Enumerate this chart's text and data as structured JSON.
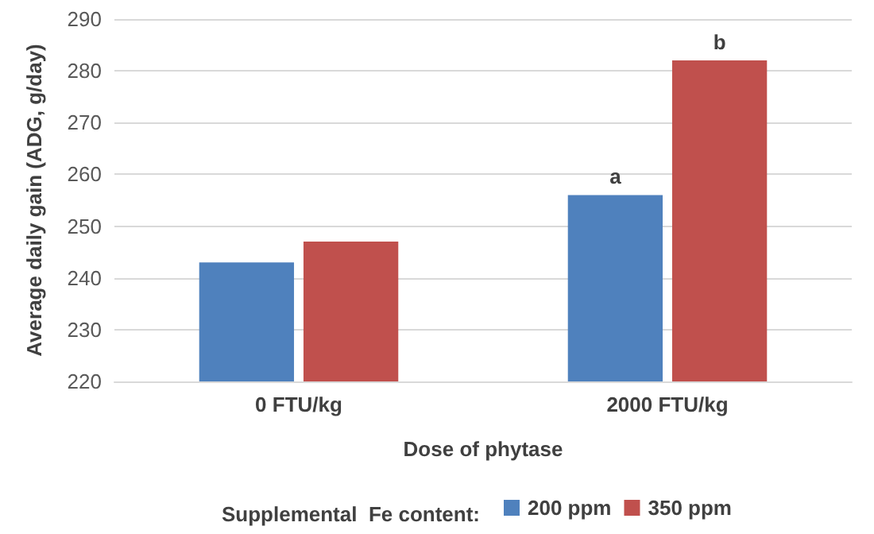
{
  "chart_data": {
    "type": "bar",
    "xlabel": "Dose of phytase",
    "ylabel": "Average daily gain (ADG, g/day)",
    "legend_title": "Supplemental  Fe content:",
    "categories": [
      "0 FTU/kg",
      "2000 FTU/kg"
    ],
    "series": [
      {
        "name": "200 ppm",
        "color": "#4f81bd",
        "values": [
          243,
          256
        ]
      },
      {
        "name": "350 ppm",
        "color": "#c0504d",
        "values": [
          247,
          282
        ]
      }
    ],
    "ylim": [
      220,
      290
    ],
    "yticks": [
      220,
      230,
      240,
      250,
      260,
      270,
      280,
      290
    ],
    "grid": "y",
    "legend": "bottom",
    "annotations": [
      {
        "text": "a",
        "x": "2000 FTU/kg",
        "y": 256
      },
      {
        "text": "b",
        "x": "2000 FTU/kg",
        "y": 282
      }
    ]
  }
}
